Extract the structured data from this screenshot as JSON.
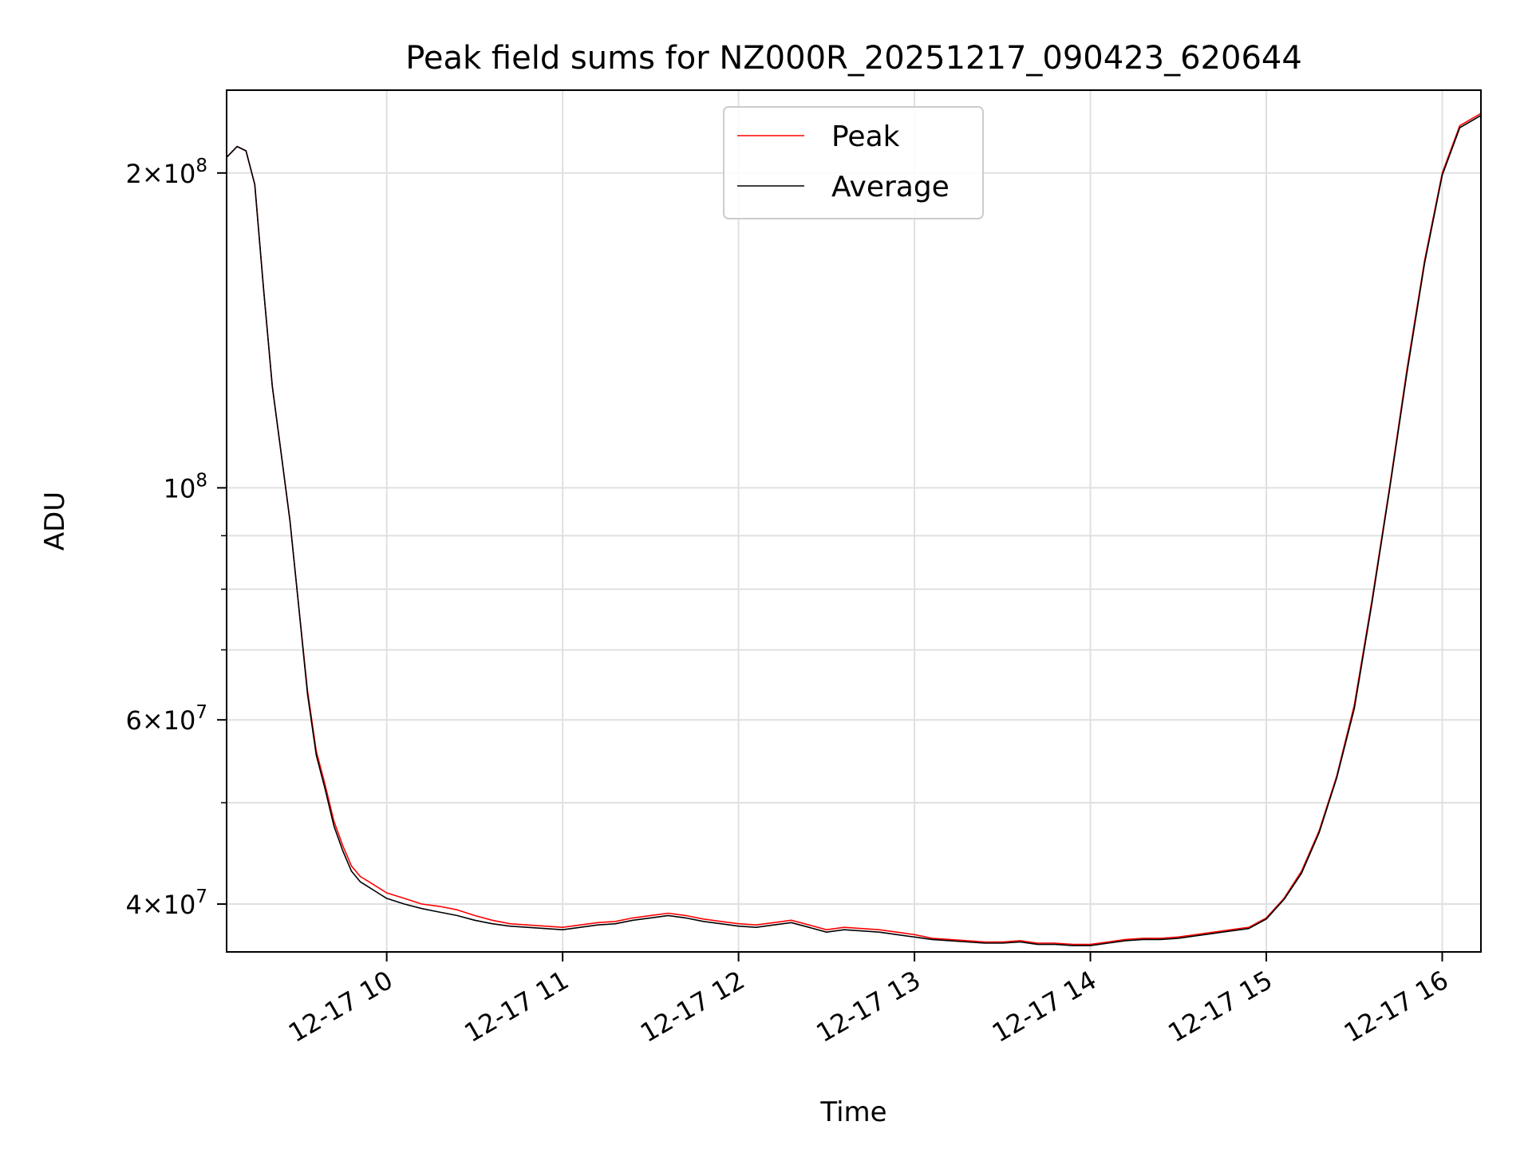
{
  "chart_data": {
    "type": "line",
    "title": "Peak field sums for NZ000R_20251217_090423_620644",
    "xlabel": "Time",
    "ylabel": "ADU",
    "yscale": "log",
    "xlim_hours": [
      9.09,
      16.22
    ],
    "ylim": [
      36000000,
      240000000
    ],
    "grid": true,
    "legend_position": "upper center",
    "x_ticks": [
      {
        "value": 10,
        "label": "12-17 10"
      },
      {
        "value": 11,
        "label": "12-17 11"
      },
      {
        "value": 12,
        "label": "12-17 12"
      },
      {
        "value": 13,
        "label": "12-17 13"
      },
      {
        "value": 14,
        "label": "12-17 14"
      },
      {
        "value": 15,
        "label": "12-17 15"
      },
      {
        "value": 16,
        "label": "12-17 16"
      }
    ],
    "y_major_ticks": [
      {
        "value": 40000000,
        "coef": "4",
        "exp": "7"
      },
      {
        "value": 60000000,
        "coef": "6",
        "exp": "7"
      },
      {
        "value": 100000000,
        "coef": "",
        "exp": "8"
      },
      {
        "value": 200000000,
        "coef": "2",
        "exp": "8"
      }
    ],
    "y_minor_ticks": [
      50000000,
      70000000,
      80000000,
      90000000
    ],
    "times_hours": [
      9.09,
      9.15,
      9.2,
      9.25,
      9.3,
      9.35,
      9.4,
      9.45,
      9.5,
      9.55,
      9.6,
      9.65,
      9.7,
      9.75,
      9.8,
      9.85,
      9.9,
      9.95,
      10.0,
      10.1,
      10.2,
      10.3,
      10.4,
      10.5,
      10.6,
      10.7,
      10.8,
      10.9,
      11.0,
      11.1,
      11.2,
      11.3,
      11.4,
      11.5,
      11.6,
      11.7,
      11.8,
      11.9,
      12.0,
      12.1,
      12.2,
      12.3,
      12.4,
      12.5,
      12.6,
      12.7,
      12.8,
      12.9,
      13.0,
      13.1,
      13.2,
      13.3,
      13.4,
      13.5,
      13.6,
      13.7,
      13.8,
      13.9,
      14.0,
      14.1,
      14.2,
      14.3,
      14.4,
      14.5,
      14.6,
      14.7,
      14.8,
      14.9,
      15.0,
      15.1,
      15.2,
      15.3,
      15.4,
      15.5,
      15.6,
      15.7,
      15.8,
      15.9,
      16.0,
      16.1,
      16.22
    ],
    "series": [
      {
        "name": "Peak",
        "color": "#ff0000",
        "values": [
          207000000,
          212000000,
          210000000,
          195000000,
          155000000,
          125000000,
          108000000,
          93000000,
          77000000,
          64000000,
          56000000,
          52000000,
          48000000,
          45500000,
          43500000,
          42500000,
          42000000,
          41500000,
          41000000,
          40500000,
          40000000,
          39800000,
          39500000,
          39000000,
          38600000,
          38300000,
          38200000,
          38100000,
          38000000,
          38200000,
          38400000,
          38500000,
          38800000,
          39000000,
          39200000,
          39000000,
          38700000,
          38500000,
          38300000,
          38200000,
          38400000,
          38600000,
          38200000,
          37800000,
          38000000,
          37900000,
          37800000,
          37600000,
          37400000,
          37100000,
          37000000,
          36900000,
          36800000,
          36800000,
          36900000,
          36700000,
          36700000,
          36600000,
          36600000,
          36800000,
          37000000,
          37100000,
          37100000,
          37200000,
          37400000,
          37600000,
          37800000,
          38000000,
          38800000,
          40500000,
          43000000,
          47000000,
          53000000,
          62000000,
          78000000,
          100000000,
          130000000,
          165000000,
          200000000,
          222000000,
          228000000
        ]
      },
      {
        "name": "Average",
        "color": "#000000",
        "values": [
          207000000,
          212000000,
          210000000,
          195000000,
          155000000,
          125000000,
          108000000,
          93000000,
          77000000,
          63500000,
          55500000,
          51500000,
          47500000,
          45000000,
          43000000,
          42000000,
          41500000,
          41000000,
          40500000,
          40000000,
          39600000,
          39300000,
          39000000,
          38600000,
          38300000,
          38100000,
          38000000,
          37900000,
          37800000,
          38000000,
          38200000,
          38300000,
          38600000,
          38800000,
          39000000,
          38800000,
          38500000,
          38300000,
          38100000,
          38000000,
          38200000,
          38400000,
          38000000,
          37600000,
          37800000,
          37700000,
          37600000,
          37400000,
          37200000,
          37000000,
          36900000,
          36800000,
          36700000,
          36700000,
          36800000,
          36600000,
          36600000,
          36500000,
          36500000,
          36700000,
          36900000,
          37000000,
          37000000,
          37100000,
          37300000,
          37500000,
          37700000,
          37900000,
          38700000,
          40400000,
          42800000,
          46800000,
          52800000,
          61500000,
          77500000,
          99500000,
          129000000,
          164000000,
          199000000,
          221000000,
          227000000
        ]
      }
    ]
  }
}
